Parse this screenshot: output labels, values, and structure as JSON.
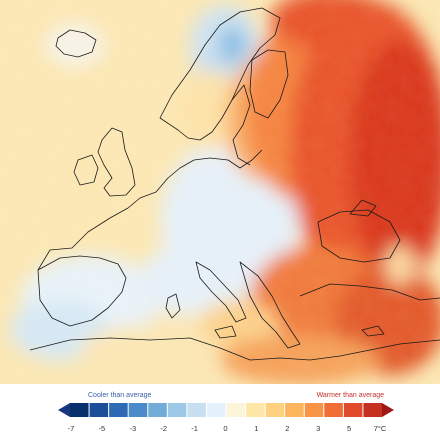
{
  "legend": {
    "cool_label": "Cooler than average",
    "warm_label": "Warmer than average",
    "tick_labels": [
      "-7",
      "-5",
      "-3",
      "-2",
      "-1",
      "0",
      "1",
      "2",
      "3",
      "5",
      "7°C"
    ],
    "colors": [
      "#08306b",
      "#1d4f99",
      "#2f6bb5",
      "#4a8ccb",
      "#72acd9",
      "#9dc9e7",
      "#c6e0f2",
      "#e5f1fa",
      "#fdf5d9",
      "#fde6a8",
      "#fdd17f",
      "#fcb55d",
      "#f99446",
      "#f06e36",
      "#de4a2b",
      "#c5301f"
    ],
    "low_arrow_color": "#16367f",
    "high_arrow_color": "#a0181a"
  },
  "map": {
    "region": "Europe",
    "variable": "temperature anomaly",
    "sea_color": "#fbe7b3",
    "cold_anomaly_color": "#cfe3f2",
    "strong_cold_color": "#8fbfe3",
    "warm_color": "#f9b16a",
    "hot_color": "#f06a32",
    "hottest_color": "#d9371f"
  }
}
